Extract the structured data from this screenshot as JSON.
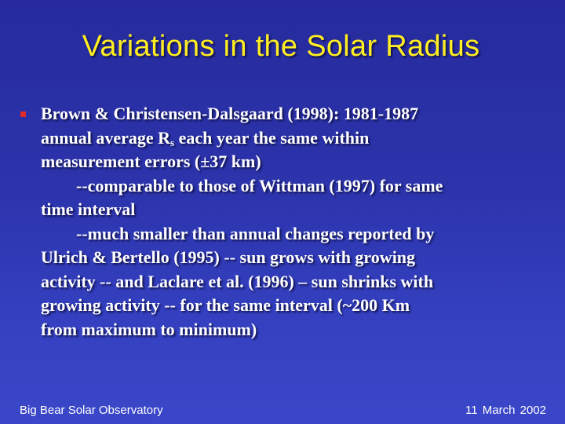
{
  "slide": {
    "title": "Variations in the Solar Radius",
    "bullet": {
      "lines": [
        "Brown & Christensen-Dalsgaard (1998): 1981-1987",
        "annual average R",
        "s",
        " each year the same within",
        "measurement errors (±37 km)",
        "--comparable to those of Wittman (1997) for same",
        "time interval",
        "--much smaller than annual changes reported by",
        "Ulrich & Bertello (1995) -- sun grows with growing",
        "activity -- and Laclare et al. (1996) – sun shrinks with",
        "growing activity -- for the same interval (~200 Km",
        "from maximum to minimum)"
      ]
    },
    "footer": {
      "left": "Big Bear Solar Observatory",
      "right": "11 March 2002"
    },
    "colors": {
      "background": "#2c34ac",
      "title": "#ffee22",
      "text": "#ffffff",
      "bullet_marker": "#e02a2a"
    },
    "bullet_marker_icon": "square-bullet-icon"
  }
}
